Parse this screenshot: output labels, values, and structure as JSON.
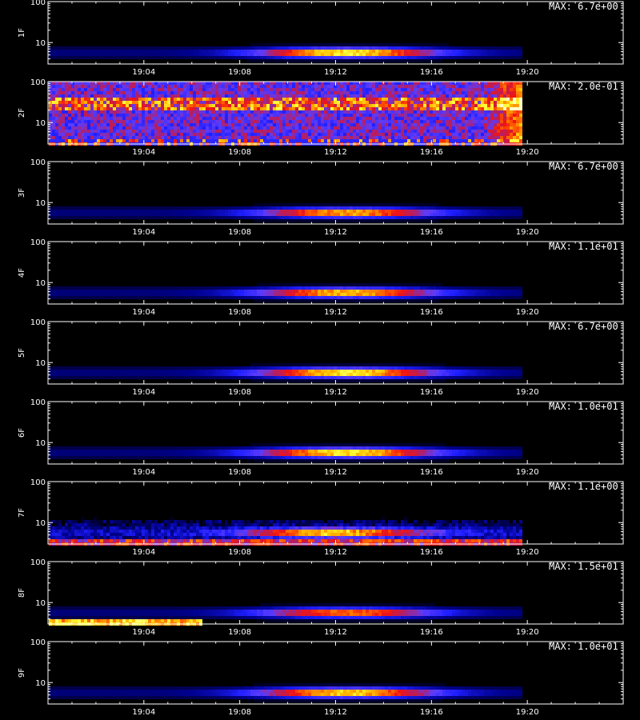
{
  "chart_data": {
    "type": "heatmap",
    "x_axis": {
      "time_range": [
        "19:00",
        "19:24"
      ],
      "tick_labels": [
        "19:04",
        "19:08",
        "19:12",
        "19:16",
        "19:20"
      ],
      "data_end": "19:19:40"
    },
    "y_axis": {
      "scale": "log",
      "range": [
        3,
        100
      ],
      "tick_labels": [
        "100",
        "10"
      ]
    },
    "colormap": [
      "#000000",
      "#00008c",
      "#1e1eff",
      "#5a3cff",
      "#b41e64",
      "#f01414",
      "#ff6400",
      "#ffbe00",
      "#ffff3c",
      "#ffffc8"
    ],
    "panels": [
      {
        "ylabel": "1F",
        "max_label": "MAX: 6.7e+00",
        "pattern": "band",
        "peak_time": "19:12:30",
        "strength": 1.0
      },
      {
        "ylabel": "2F",
        "max_label": "MAX: 2.0e-01",
        "pattern": "noise",
        "peak_time": "19:12:00",
        "strength": 1.0
      },
      {
        "ylabel": "3F",
        "max_label": "MAX: 6.7e+00",
        "pattern": "band",
        "peak_time": "19:12:30",
        "strength": 0.85
      },
      {
        "ylabel": "4F",
        "max_label": "MAX: 1.1e+01",
        "pattern": "band",
        "peak_time": "19:12:30",
        "strength": 0.9
      },
      {
        "ylabel": "5F",
        "max_label": "MAX: 6.7e+00",
        "pattern": "band",
        "peak_time": "19:12:30",
        "strength": 1.0
      },
      {
        "ylabel": "6F",
        "max_label": "MAX: 1.0e+01",
        "pattern": "band",
        "peak_time": "19:12:30",
        "strength": 1.0
      },
      {
        "ylabel": "7F",
        "max_label": "MAX: 1.1e+00",
        "pattern": "band_noisy",
        "peak_time": "19:12:00",
        "strength": 0.85
      },
      {
        "ylabel": "8F",
        "max_label": "MAX: 1.5e+01",
        "pattern": "band_flare",
        "peak_time": "19:12:30",
        "strength": 0.75
      },
      {
        "ylabel": "9F",
        "max_label": "MAX: 1.0e+01",
        "pattern": "band",
        "peak_time": "19:12:30",
        "strength": 0.95
      }
    ]
  }
}
